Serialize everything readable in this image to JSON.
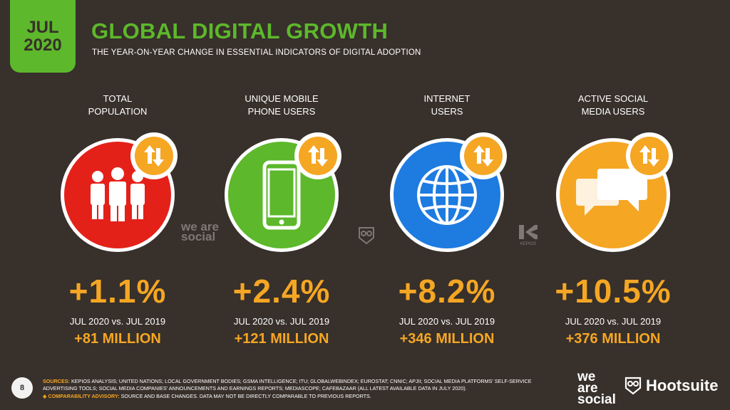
{
  "badge": {
    "month": "JUL",
    "year": "2020"
  },
  "header": {
    "title": "GLOBAL DIGITAL GROWTH",
    "subtitle": "THE YEAR-ON-YEAR CHANGE IN ESSENTIAL INDICATORS OF DIGITAL ADOPTION"
  },
  "indicators": [
    {
      "label": "TOTAL\nPOPULATION",
      "icon": "people-icon",
      "color": "#e32119",
      "change": "+1.1%",
      "comparison": "JUL 2020 vs. JUL 2019",
      "absolute": "+81 MILLION"
    },
    {
      "label": "UNIQUE MOBILE\nPHONE USERS",
      "icon": "mobile-phone-icon",
      "color": "#5db82b",
      "change": "+2.4%",
      "comparison": "JUL 2020 vs. JUL 2019",
      "absolute": "+121 MILLION"
    },
    {
      "label": "INTERNET\nUSERS",
      "icon": "globe-icon",
      "color": "#1e7be0",
      "change": "+8.2%",
      "comparison": "JUL 2020 vs. JUL 2019",
      "absolute": "+346 MILLION"
    },
    {
      "label": "ACTIVE SOCIAL\nMEDIA USERS",
      "icon": "speech-bubbles-icon",
      "color": "#f5a623",
      "change": "+10.5%",
      "comparison": "JUL 2020 vs. JUL 2019",
      "absolute": "+376 MILLION"
    }
  ],
  "watermarks": {
    "we_are_social": "we are social",
    "kepios": "KEPIOS"
  },
  "footer": {
    "page_number": "8",
    "sources_key": "SOURCES:",
    "sources_text": "KEPIOS ANALYSIS; UNITED NATIONS; LOCAL GOVERNMENT BODIES; GSMA INTELLIGENCE; ITU; GLOBALWEBINDEX; EUROSTAT; CNNIC; APJII; SOCIAL MEDIA PLATFORMS' SELF-SERVICE ADVERTISING TOOLS; SOCIAL MEDIA COMPANIES' ANNOUNCEMENTS AND EARNINGS REPORTS; MEDIASCOPE; CAFEBAZAAR (ALL LATEST AVAILABLE DATA IN JULY 2020).",
    "advisory_key": "◈ COMPARABILITY ADVISORY:",
    "advisory_text": "SOURCE AND BASE CHANGES. DATA MAY NOT BE DIRECTLY COMPARABLE TO PREVIOUS REPORTS.",
    "brand_we_are_social": "we are social",
    "brand_hootsuite": "Hootsuite"
  },
  "colors": {
    "background": "#37302b",
    "accent_green": "#5db82b",
    "accent_orange": "#f5a623"
  }
}
